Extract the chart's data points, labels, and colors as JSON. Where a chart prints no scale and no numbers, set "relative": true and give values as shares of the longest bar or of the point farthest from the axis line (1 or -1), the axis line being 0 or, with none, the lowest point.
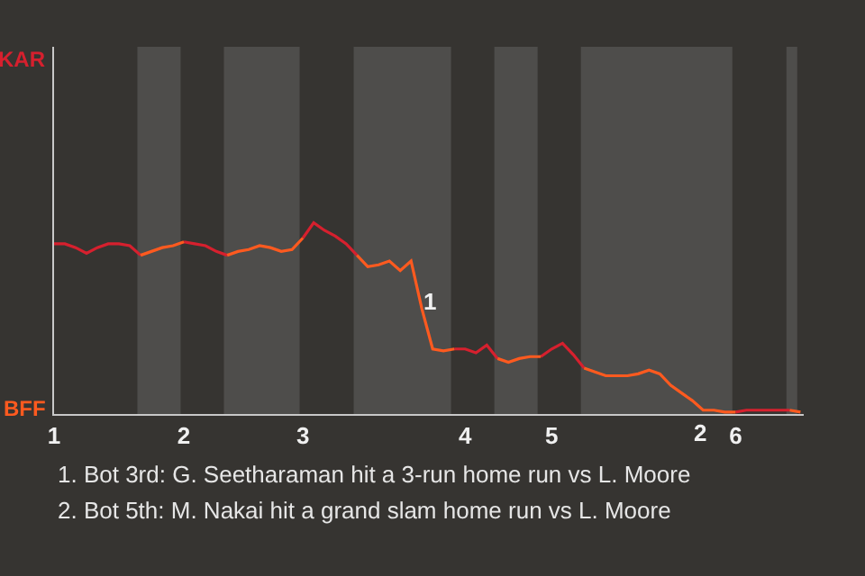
{
  "chart_data": {
    "type": "line",
    "relative": true,
    "categories": [
      "1",
      null,
      null,
      null,
      null,
      null,
      null,
      null,
      null,
      null,
      null,
      null,
      "2",
      null,
      null,
      null,
      null,
      null,
      null,
      null,
      null,
      null,
      null,
      "3",
      null,
      null,
      null,
      null,
      null,
      null,
      null,
      null,
      null,
      null,
      null,
      null,
      null,
      null,
      "4",
      null,
      null,
      null,
      null,
      null,
      null,
      null,
      "5",
      null,
      null,
      null,
      null,
      null,
      null,
      null,
      null,
      null,
      null,
      null,
      null,
      null,
      null,
      null,
      null,
      "6",
      null,
      null,
      null,
      null,
      null,
      null
    ],
    "marker": "none",
    "series": [
      {
        "name": "KAR",
        "color": "#d6202e",
        "values": [
          0.89,
          0.89,
          0.87,
          0.84,
          0.87,
          0.89,
          0.89,
          0.88,
          0.83,
          null,
          null,
          null,
          0.9,
          0.89,
          0.88,
          0.85,
          0.83,
          null,
          null,
          null,
          null,
          null,
          null,
          0.92,
          1,
          0.96,
          0.93,
          0.89,
          0.83,
          null,
          null,
          null,
          null,
          null,
          null,
          null,
          null,
          0.34,
          0.34,
          0.32,
          0.36,
          0.29,
          null,
          null,
          null,
          0.3,
          0.34,
          0.37,
          0.31,
          0.24,
          null,
          null,
          null,
          null,
          null,
          null,
          null,
          null,
          null,
          null,
          null,
          null,
          null,
          0.01,
          0.02,
          0.02,
          0.02,
          0.02,
          0.02,
          null
        ]
      },
      {
        "name": "BFF",
        "color": "#ff5a1f",
        "values": [
          null,
          null,
          null,
          null,
          null,
          null,
          null,
          null,
          0.83,
          0.85,
          0.87,
          0.88,
          0.9,
          null,
          null,
          null,
          0.83,
          0.85,
          0.86,
          0.88,
          0.87,
          0.85,
          0.86,
          0.92,
          null,
          null,
          null,
          null,
          0.83,
          0.77,
          0.78,
          0.8,
          0.75,
          0.8,
          0.55,
          0.34,
          0.33,
          0.34,
          null,
          null,
          null,
          0.29,
          0.27,
          0.29,
          0.3,
          0.3,
          null,
          null,
          null,
          0.24,
          0.22,
          0.2,
          0.2,
          0.2,
          0.21,
          0.23,
          0.21,
          0.15,
          0.11,
          0.07,
          0.02,
          0.02,
          0.01,
          0.01,
          null,
          null,
          null,
          null,
          0.02,
          0.01
        ]
      }
    ],
    "annotations": [
      "1",
      "2",
      "1. Bot 3rd: G. Seetharaman hit a 3-run home run vs L. Moore",
      "2. Bot 5th: M. Nakai hit a grand slam home run vs L. Moore"
    ]
  }
}
